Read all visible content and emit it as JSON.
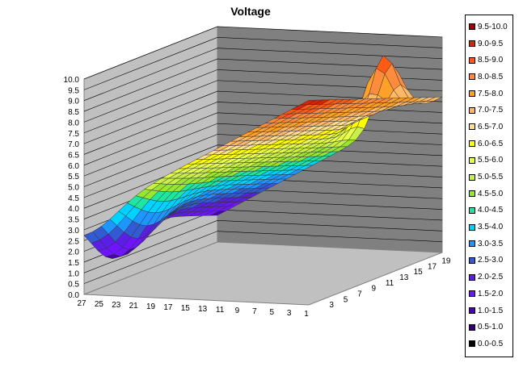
{
  "chart_data": {
    "type": "surface",
    "title": "Voltage",
    "xlabel": "",
    "ylabel": "",
    "zlabel": "",
    "z_ticks": [
      "0.0",
      "0.5",
      "1.0",
      "1.5",
      "2.0",
      "2.5",
      "3.0",
      "3.5",
      "4.0",
      "4.5",
      "5.0",
      "5.5",
      "6.0",
      "6.5",
      "7.0",
      "7.5",
      "8.0",
      "8.5",
      "9.0",
      "9.5",
      "10.0"
    ],
    "zlim": [
      0,
      10
    ],
    "x_ticks": [
      "1",
      "3",
      "5",
      "7",
      "9",
      "11",
      "13",
      "15",
      "17",
      "19",
      "21",
      "23",
      "25",
      "27"
    ],
    "y_ticks": [
      "3",
      "5",
      "7",
      "9",
      "11",
      "13",
      "15",
      "17",
      "19"
    ],
    "x_range": [
      1,
      27
    ],
    "y_range": [
      1,
      20
    ],
    "grid": true,
    "legend_position": "right",
    "legend": [
      {
        "label": "9.5-10.0",
        "color": "#990000"
      },
      {
        "label": "9.0-9.5",
        "color": "#e02000"
      },
      {
        "label": "8.5-9.0",
        "color": "#ff5a14"
      },
      {
        "label": "8.0-8.5",
        "color": "#ff8c3c"
      },
      {
        "label": "7.5-8.0",
        "color": "#ffa028"
      },
      {
        "label": "7.0-7.5",
        "color": "#ffb864"
      },
      {
        "label": "6.5-7.0",
        "color": "#ffe08c"
      },
      {
        "label": "6.0-6.5",
        "color": "#ffff00"
      },
      {
        "label": "5.5-6.0",
        "color": "#e6ff46"
      },
      {
        "label": "5.0-5.5",
        "color": "#c8f046"
      },
      {
        "label": "4.5-5.0",
        "color": "#96e632"
      },
      {
        "label": "4.0-4.5",
        "color": "#1ee6a0"
      },
      {
        "label": "3.5-4.0",
        "color": "#00d2ff"
      },
      {
        "label": "3.0-3.5",
        "color": "#1e96ff"
      },
      {
        "label": "2.5-3.0",
        "color": "#325ad2"
      },
      {
        "label": "2.0-2.5",
        "color": "#5a1ee6"
      },
      {
        "label": "1.5-2.0",
        "color": "#6e14ff"
      },
      {
        "label": "1.0-1.5",
        "color": "#4b00b4"
      },
      {
        "label": "0.5-1.0",
        "color": "#320078"
      },
      {
        "label": "0.0-0.5",
        "color": "#000000"
      }
    ]
  }
}
